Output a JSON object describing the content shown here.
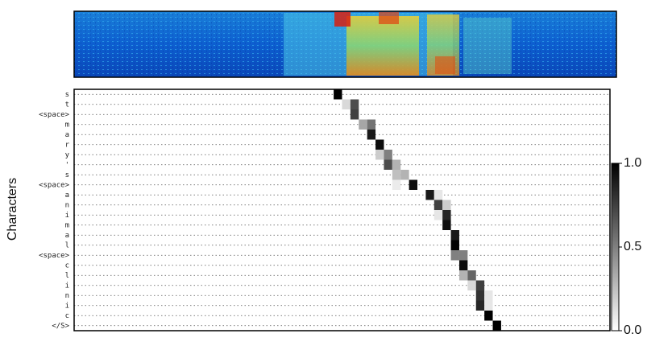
{
  "chart_data": {
    "type": "heatmap",
    "y_label": "Characters",
    "categories": [
      "s",
      "t",
      "<space>",
      "m",
      "a",
      "r",
      "y",
      "'",
      "s",
      "<space>",
      "a",
      "n",
      "i",
      "m",
      "a",
      "l",
      "<space>",
      "c",
      "l",
      "i",
      "n",
      "i",
      "c",
      "</S>"
    ],
    "xlim": [
      0,
      64
    ],
    "grid": true,
    "colormap": "gray_r",
    "clim": [
      0,
      1
    ],
    "cticks": [
      {
        "value": 0,
        "label": "0.0"
      },
      0.5,
      {
        "value": 1,
        "label": "1.0"
      }
    ],
    "cells": {
      "rows": [
        0,
        1,
        1,
        2,
        3,
        3,
        4,
        5,
        6,
        6,
        7,
        7,
        8,
        8,
        9,
        9,
        10,
        10,
        11,
        11,
        12,
        12,
        13,
        14,
        15,
        16,
        16,
        17,
        18,
        18,
        19,
        19,
        20,
        20,
        21,
        21,
        22,
        23
      ],
      "cols": [
        31,
        32,
        33,
        33,
        34,
        35,
        35,
        36,
        36,
        37,
        37,
        38,
        38,
        39,
        38,
        40,
        42,
        43,
        43,
        44,
        43,
        44,
        44,
        45,
        45,
        45,
        46,
        46,
        46,
        47,
        47,
        48,
        48,
        49,
        48,
        49,
        49,
        50
      ],
      "values": [
        1.0,
        0.15,
        0.7,
        0.75,
        0.35,
        0.55,
        0.9,
        0.95,
        0.2,
        0.5,
        0.7,
        0.3,
        0.25,
        0.3,
        0.08,
        0.95,
        0.9,
        0.1,
        0.75,
        0.2,
        0.1,
        0.85,
        0.95,
        0.9,
        1.0,
        0.5,
        0.5,
        0.95,
        0.3,
        0.6,
        0.15,
        0.75,
        0.8,
        0.1,
        0.85,
        0.1,
        1.0,
        1.0
      ]
    }
  }
}
